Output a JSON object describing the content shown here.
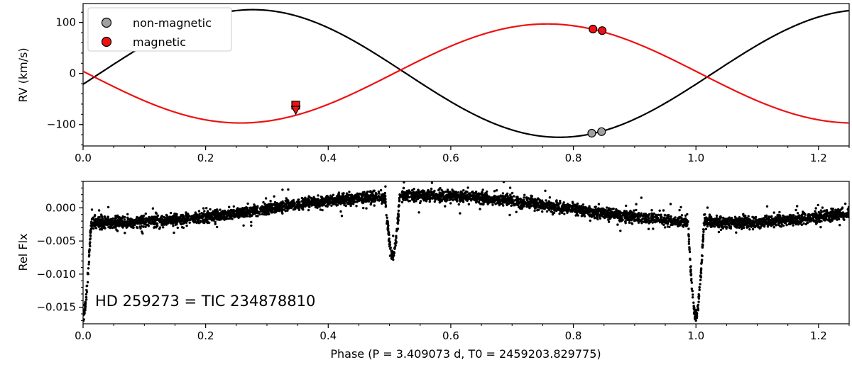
{
  "chart_data": [
    {
      "type": "line",
      "panel": "top",
      "ylabel": "RV (km/s)",
      "xlabel": "",
      "xlim": [
        0.0,
        1.25
      ],
      "ylim": [
        -142,
        137
      ],
      "xticks": [
        0.0,
        0.2,
        0.4,
        0.6,
        0.8,
        1.0,
        1.2
      ],
      "xtick_labels": [
        "0.0",
        "0.2",
        "0.4",
        "0.6",
        "0.8",
        "1.0",
        "1.2"
      ],
      "yticks": [
        -100,
        0,
        100
      ],
      "ytick_labels": [
        "−100",
        "0",
        "100"
      ],
      "legend_position": "top-left",
      "legend": [
        {
          "label": "non-magnetic",
          "color": "#a0a0a0"
        },
        {
          "label": "magnetic",
          "color": "#ee1111"
        }
      ],
      "series": [
        {
          "name": "non-magnetic",
          "kind": "model-curve",
          "color": "#000000",
          "gamma": 0,
          "amplitude": 125,
          "phase_of_max": 0.277,
          "points": [
            [
              0.83,
              -117
            ],
            [
              0.846,
              -114
            ]
          ]
        },
        {
          "name": "magnetic",
          "kind": "model-curve",
          "color": "#ee1111",
          "gamma": 0,
          "amplitude": 97,
          "phase_of_max": 0.757,
          "points": [
            [
              0.832,
              87
            ],
            [
              0.847,
              84
            ]
          ],
          "upper_limit_point": [
            0.347,
            -62
          ],
          "lower_limit_point": [
            0.347,
            -70
          ]
        }
      ]
    },
    {
      "type": "scatter",
      "panel": "bottom",
      "ylabel": "Rel Flx",
      "xlabel": "Phase (P = 3.409073 d, T0 = 2459203.829775)",
      "xlim": [
        0.0,
        1.25
      ],
      "ylim": [
        -0.0175,
        0.004
      ],
      "xticks": [
        0.0,
        0.2,
        0.4,
        0.6,
        0.8,
        1.0,
        1.2
      ],
      "xtick_labels": [
        "0.0",
        "0.2",
        "0.4",
        "0.6",
        "0.8",
        "1.0",
        "1.2"
      ],
      "yticks": [
        -0.015,
        -0.01,
        -0.005,
        0.0
      ],
      "ytick_labels": [
        "−0.015",
        "−0.010",
        "−0.005",
        "0.000"
      ],
      "annotation": "HD 259273 = TIC 234878810",
      "color": "#000000",
      "light_curve": {
        "primary_eclipse": {
          "phase": 1.0,
          "depth": -0.0162,
          "half_width": 0.013
        },
        "secondary_eclipse": {
          "phase": 0.505,
          "depth": -0.0085,
          "half_width": 0.012
        },
        "out_of_eclipse_low": -0.0022,
        "out_of_eclipse_high": 0.0019,
        "max_near_phase": 0.55,
        "scatter": 0.0006
      }
    }
  ]
}
